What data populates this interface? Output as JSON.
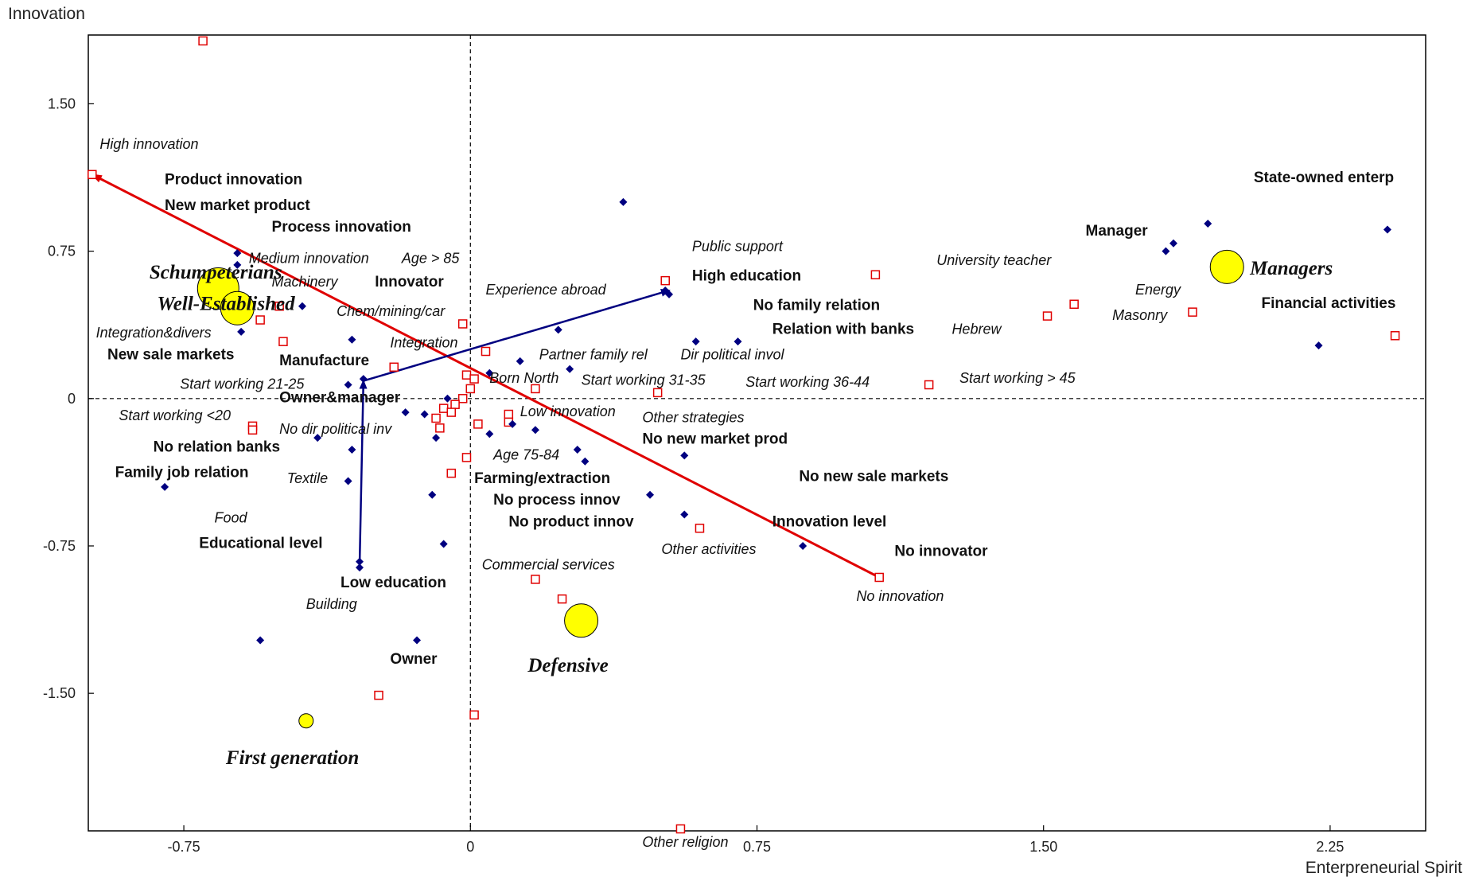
{
  "chart_data": {
    "type": "scatter",
    "title": "",
    "xlabel": "Enterpreneurial Spirit",
    "ylabel": "Innovation",
    "xlim": [
      -1.0,
      2.5
    ],
    "ylim": [
      -2.2,
      1.85
    ],
    "xticks": [
      {
        "v": -0.75,
        "label": "-0.75"
      },
      {
        "v": 0,
        "label": "0"
      },
      {
        "v": 0.75,
        "label": "0.75"
      },
      {
        "v": 1.5,
        "label": "1.50"
      },
      {
        "v": 2.25,
        "label": "2.25"
      }
    ],
    "yticks": [
      {
        "v": 1.5,
        "label": "1.50"
      },
      {
        "v": 0.75,
        "label": "0.75"
      },
      {
        "v": 0,
        "label": "0"
      },
      {
        "v": -0.75,
        "label": "-0.75"
      },
      {
        "v": -1.5,
        "label": "-1.50"
      }
    ],
    "reference_lines": {
      "x": 0,
      "y": 0,
      "style": "dashed"
    },
    "groups": [
      {
        "name": "Schumpeterians",
        "x": -0.66,
        "y": 0.56,
        "size": "large"
      },
      {
        "name": "Well-Established",
        "x": -0.61,
        "y": 0.46,
        "size": "medium"
      },
      {
        "name": "Managers",
        "x": 1.98,
        "y": 0.67,
        "size": "medium"
      },
      {
        "name": "Defensive",
        "x": 0.29,
        "y": -1.13,
        "size": "medium"
      },
      {
        "name": "First generation",
        "x": -0.43,
        "y": -1.64,
        "size": "small"
      }
    ],
    "active_points": [
      {
        "x": -0.61,
        "y": 0.74
      },
      {
        "x": -0.61,
        "y": 0.68
      },
      {
        "x": -0.44,
        "y": 0.47
      },
      {
        "x": -0.6,
        "y": 0.34
      },
      {
        "x": -0.31,
        "y": 0.3
      },
      {
        "x": -0.32,
        "y": 0.07
      },
      {
        "x": -0.28,
        "y": 0.1
      },
      {
        "x": -0.31,
        "y": -0.26
      },
      {
        "x": -0.32,
        "y": -0.42
      },
      {
        "x": -0.4,
        "y": -0.2
      },
      {
        "x": -0.8,
        "y": -0.45
      },
      {
        "x": -0.55,
        "y": -1.23
      },
      {
        "x": -0.29,
        "y": -0.83
      },
      {
        "x": -0.29,
        "y": -0.86
      },
      {
        "x": -0.14,
        "y": -1.23
      },
      {
        "x": -0.1,
        "y": -0.49
      },
      {
        "x": -0.07,
        "y": -0.74
      },
      {
        "x": -0.09,
        "y": -0.2
      },
      {
        "x": -0.12,
        "y": -0.08
      },
      {
        "x": -0.17,
        "y": -0.07
      },
      {
        "x": -0.06,
        "y": 0.0
      },
      {
        "x": 0.05,
        "y": -0.18
      },
      {
        "x": 0.11,
        "y": -0.13
      },
      {
        "x": 0.17,
        "y": -0.16
      },
      {
        "x": 0.28,
        "y": -0.26
      },
      {
        "x": 0.3,
        "y": -0.32
      },
      {
        "x": 0.47,
        "y": -0.49
      },
      {
        "x": 0.56,
        "y": -0.29
      },
      {
        "x": 0.56,
        "y": -0.59
      },
      {
        "x": 0.87,
        "y": -0.75
      },
      {
        "x": 0.4,
        "y": 1.0
      },
      {
        "x": 0.23,
        "y": 0.35
      },
      {
        "x": 0.13,
        "y": 0.19
      },
      {
        "x": 0.05,
        "y": 0.13
      },
      {
        "x": 0.26,
        "y": 0.15
      },
      {
        "x": 0.52,
        "y": 0.53
      },
      {
        "x": 0.51,
        "y": 0.55
      },
      {
        "x": 0.59,
        "y": 0.29
      },
      {
        "x": 0.7,
        "y": 0.29
      },
      {
        "x": 1.82,
        "y": 0.75
      },
      {
        "x": 1.84,
        "y": 0.79
      },
      {
        "x": 1.93,
        "y": 0.89
      },
      {
        "x": 2.22,
        "y": 0.27
      },
      {
        "x": 2.4,
        "y": 0.86
      }
    ],
    "supplementary_points": [
      {
        "x": -0.7,
        "y": 1.82
      },
      {
        "x": -0.99,
        "y": 1.14
      },
      {
        "x": -0.5,
        "y": 0.47
      },
      {
        "x": -0.55,
        "y": 0.4
      },
      {
        "x": -0.49,
        "y": 0.29
      },
      {
        "x": -0.57,
        "y": -0.14
      },
      {
        "x": -0.57,
        "y": -0.16
      },
      {
        "x": -0.2,
        "y": 0.16
      },
      {
        "x": -0.02,
        "y": 0.38
      },
      {
        "x": 0.04,
        "y": 0.24
      },
      {
        "x": -0.01,
        "y": 0.12
      },
      {
        "x": 0.0,
        "y": 0.05
      },
      {
        "x": 0.01,
        "y": 0.1
      },
      {
        "x": 0.17,
        "y": 0.05
      },
      {
        "x": 0.49,
        "y": 0.03
      },
      {
        "x": -0.02,
        "y": 0.0
      },
      {
        "x": -0.04,
        "y": -0.03
      },
      {
        "x": -0.07,
        "y": -0.05
      },
      {
        "x": -0.09,
        "y": -0.1
      },
      {
        "x": -0.08,
        "y": -0.15
      },
      {
        "x": -0.05,
        "y": -0.07
      },
      {
        "x": 0.02,
        "y": -0.13
      },
      {
        "x": 0.1,
        "y": -0.08
      },
      {
        "x": 0.1,
        "y": -0.12
      },
      {
        "x": -0.01,
        "y": -0.3
      },
      {
        "x": -0.05,
        "y": -0.38
      },
      {
        "x": 0.17,
        "y": -0.92
      },
      {
        "x": 0.24,
        "y": -1.02
      },
      {
        "x": 0.6,
        "y": -0.66
      },
      {
        "x": -0.24,
        "y": -1.51
      },
      {
        "x": 0.01,
        "y": -1.61
      },
      {
        "x": 0.55,
        "y": -2.19
      },
      {
        "x": 0.51,
        "y": 0.6
      },
      {
        "x": 1.06,
        "y": 0.63
      },
      {
        "x": 1.2,
        "y": 0.07
      },
      {
        "x": 1.51,
        "y": 0.42
      },
      {
        "x": 1.58,
        "y": 0.48
      },
      {
        "x": 1.89,
        "y": 0.44
      },
      {
        "x": 2.42,
        "y": 0.32
      },
      {
        "x": 1.07,
        "y": -0.91
      }
    ],
    "vectors": [
      {
        "name": "Innovation level",
        "color": "#e00000",
        "from": [
          1.07,
          -0.91
        ],
        "to": [
          -0.99,
          1.14
        ]
      },
      {
        "name": "Educational level",
        "color": "#000080",
        "from": [
          -0.29,
          -0.85
        ],
        "to": [
          -0.28,
          0.09
        ]
      },
      {
        "name": "Educational level",
        "color": "#000080",
        "from": [
          -0.28,
          0.09
        ],
        "to": [
          0.52,
          0.55
        ]
      }
    ],
    "labels": [
      {
        "text": "High innovation",
        "x": -0.97,
        "y": 1.27,
        "style": "italic"
      },
      {
        "text": "Product innovation",
        "x": -0.8,
        "y": 1.09,
        "style": "bold"
      },
      {
        "text": "New market product",
        "x": -0.8,
        "y": 0.96,
        "style": "bold"
      },
      {
        "text": "Process innovation",
        "x": -0.52,
        "y": 0.85,
        "style": "bold"
      },
      {
        "text": "Medium innovation",
        "x": -0.58,
        "y": 0.69,
        "style": "italic"
      },
      {
        "text": "Age > 85",
        "x": -0.18,
        "y": 0.69,
        "style": "italic"
      },
      {
        "text": "Machinery",
        "x": -0.52,
        "y": 0.57,
        "style": "italic"
      },
      {
        "text": "Innovator",
        "x": -0.25,
        "y": 0.57,
        "style": "bold"
      },
      {
        "text": "Chem/mining/car",
        "x": -0.35,
        "y": 0.42,
        "style": "italic"
      },
      {
        "text": "Integration&divers",
        "x": -0.98,
        "y": 0.31,
        "style": "italic"
      },
      {
        "text": "Integration",
        "x": -0.21,
        "y": 0.26,
        "style": "italic"
      },
      {
        "text": "New sale markets",
        "x": -0.95,
        "y": 0.2,
        "style": "bold"
      },
      {
        "text": "Manufacture",
        "x": -0.5,
        "y": 0.17,
        "style": "bold"
      },
      {
        "text": "Start working 21-25",
        "x": -0.76,
        "y": 0.05,
        "style": "italic"
      },
      {
        "text": "Owner&manager",
        "x": -0.5,
        "y": -0.02,
        "style": "bold"
      },
      {
        "text": "Start working <20",
        "x": -0.92,
        "y": -0.11,
        "style": "italic"
      },
      {
        "text": "No dir political inv",
        "x": -0.5,
        "y": -0.18,
        "style": "italic"
      },
      {
        "text": "No relation banks",
        "x": -0.83,
        "y": -0.27,
        "style": "bold"
      },
      {
        "text": "Family job relation",
        "x": -0.93,
        "y": -0.4,
        "style": "bold"
      },
      {
        "text": "Textile",
        "x": -0.48,
        "y": -0.43,
        "style": "italic"
      },
      {
        "text": "Food",
        "x": -0.67,
        "y": -0.63,
        "style": "italic"
      },
      {
        "text": "Educational level",
        "x": -0.71,
        "y": -0.76,
        "style": "bold"
      },
      {
        "text": "Low education",
        "x": -0.34,
        "y": -0.96,
        "style": "bold"
      },
      {
        "text": "Building",
        "x": -0.43,
        "y": -1.07,
        "style": "italic"
      },
      {
        "text": "Owner",
        "x": -0.21,
        "y": -1.35,
        "style": "bold"
      },
      {
        "text": "Experience abroad",
        "x": 0.04,
        "y": 0.53,
        "style": "italic"
      },
      {
        "text": "Public support",
        "x": 0.58,
        "y": 0.75,
        "style": "italic"
      },
      {
        "text": "High education",
        "x": 0.58,
        "y": 0.6,
        "style": "bold"
      },
      {
        "text": "No family relation",
        "x": 0.74,
        "y": 0.45,
        "style": "bold"
      },
      {
        "text": "Relation with banks",
        "x": 0.79,
        "y": 0.33,
        "style": "bold"
      },
      {
        "text": "Partner family rel",
        "x": 0.18,
        "y": 0.2,
        "style": "italic"
      },
      {
        "text": "Dir political invol",
        "x": 0.55,
        "y": 0.2,
        "style": "italic"
      },
      {
        "text": "Born North",
        "x": 0.05,
        "y": 0.08,
        "style": "italic"
      },
      {
        "text": "Start working 31-35",
        "x": 0.29,
        "y": 0.07,
        "style": "italic"
      },
      {
        "text": "Start working 36-44",
        "x": 0.72,
        "y": 0.06,
        "style": "italic"
      },
      {
        "text": "Start working > 45",
        "x": 1.28,
        "y": 0.08,
        "style": "italic"
      },
      {
        "text": "Low innovation",
        "x": 0.13,
        "y": -0.09,
        "style": "italic"
      },
      {
        "text": "Other strategies",
        "x": 0.45,
        "y": -0.12,
        "style": "italic"
      },
      {
        "text": "No new market prod",
        "x": 0.45,
        "y": -0.23,
        "style": "bold"
      },
      {
        "text": "Age 75-84",
        "x": 0.06,
        "y": -0.31,
        "style": "italic"
      },
      {
        "text": "Farming/extraction",
        "x": 0.01,
        "y": -0.43,
        "style": "bold"
      },
      {
        "text": "No process innov",
        "x": 0.06,
        "y": -0.54,
        "style": "bold"
      },
      {
        "text": "No product innov",
        "x": 0.1,
        "y": -0.65,
        "style": "bold"
      },
      {
        "text": "No new sale markets",
        "x": 0.86,
        "y": -0.42,
        "style": "bold"
      },
      {
        "text": "Innovation level",
        "x": 0.79,
        "y": -0.65,
        "style": "bold"
      },
      {
        "text": "Other activities",
        "x": 0.5,
        "y": -0.79,
        "style": "italic"
      },
      {
        "text": "Commercial services",
        "x": 0.03,
        "y": -0.87,
        "style": "italic"
      },
      {
        "text": "No innovator",
        "x": 1.11,
        "y": -0.8,
        "style": "bold"
      },
      {
        "text": "No innovation",
        "x": 1.01,
        "y": -1.03,
        "style": "italic"
      },
      {
        "text": "Other religion",
        "x": 0.45,
        "y": -2.28,
        "style": "italic"
      },
      {
        "text": "State-owned enterp",
        "x": 2.05,
        "y": 1.1,
        "style": "bold"
      },
      {
        "text": "Manager",
        "x": 1.61,
        "y": 0.83,
        "style": "bold"
      },
      {
        "text": "University teacher",
        "x": 1.22,
        "y": 0.68,
        "style": "italic"
      },
      {
        "text": "Energy",
        "x": 1.74,
        "y": 0.53,
        "style": "italic"
      },
      {
        "text": "Masonry",
        "x": 1.68,
        "y": 0.4,
        "style": "italic"
      },
      {
        "text": "Financial activities",
        "x": 2.07,
        "y": 0.46,
        "style": "bold"
      },
      {
        "text": "Hebrew",
        "x": 1.26,
        "y": 0.33,
        "style": "italic"
      }
    ]
  }
}
